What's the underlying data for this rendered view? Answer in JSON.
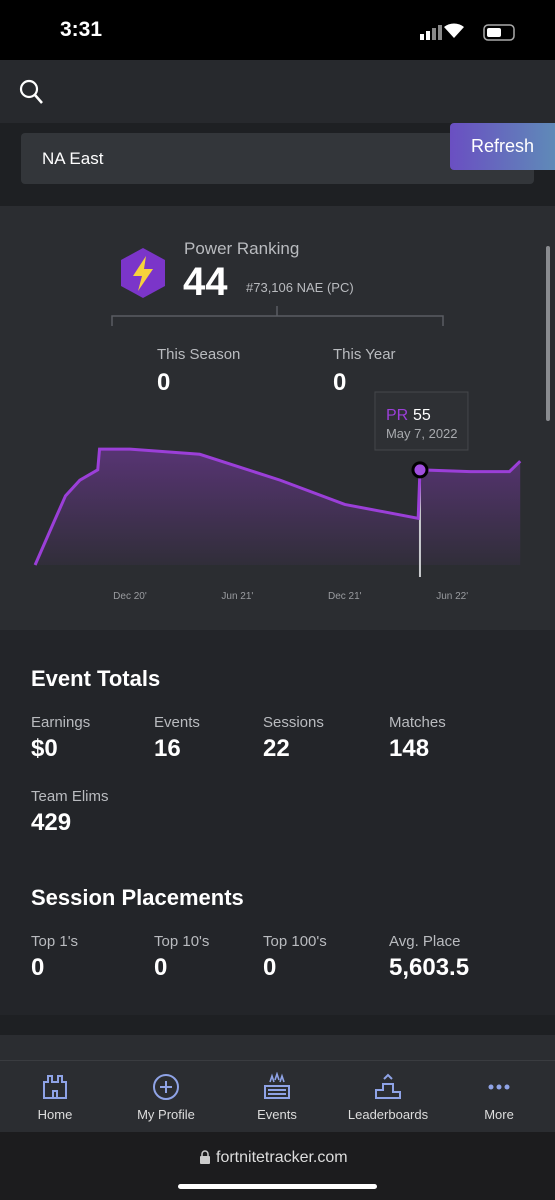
{
  "status": {
    "time": "3:31"
  },
  "region": {
    "value": "NA East",
    "refresh": "Refresh"
  },
  "power": {
    "label": "Power Ranking",
    "value": 44,
    "rank": "#73,106 NAE (PC)",
    "season": {
      "label": "This Season",
      "value": 0
    },
    "year": {
      "label": "This Year",
      "value": 0
    }
  },
  "chart_data": {
    "type": "line",
    "color": "#9b3fd8",
    "x": [
      5.7,
      6.8,
      7.4,
      8.2,
      9.2,
      9.3,
      11,
      14.9,
      19.4,
      23,
      27.1,
      27.2,
      30,
      32.2,
      32.8
    ],
    "values": [
      0,
      26,
      40,
      49,
      55,
      67,
      67,
      64,
      49,
      35,
      27,
      55,
      54,
      54,
      60
    ],
    "xlim": [
      5.5,
      33
    ],
    "ylim": [
      0,
      100
    ],
    "xticks": [
      {
        "value": 11,
        "label": "Dec 20'"
      },
      {
        "value": 17,
        "label": "Jun 21'"
      },
      {
        "value": 23,
        "label": "Dec 21'"
      },
      {
        "value": 29,
        "label": "Jun 22'"
      }
    ],
    "tooltip": {
      "label": "PR",
      "value": 55,
      "date": "May 7, 2022",
      "index": 11
    }
  },
  "event_totals": {
    "title": "Event Totals",
    "stats": [
      {
        "label": "Earnings",
        "value": "$0"
      },
      {
        "label": "Events",
        "value": 16
      },
      {
        "label": "Sessions",
        "value": 22
      },
      {
        "label": "Matches",
        "value": 148
      },
      {
        "label": "Team Elims",
        "value": 429
      }
    ]
  },
  "session_placements": {
    "title": "Session Placements",
    "stats": [
      {
        "label": "Top 1's",
        "value": 0
      },
      {
        "label": "Top 10's",
        "value": 0
      },
      {
        "label": "Top 100's",
        "value": 0
      },
      {
        "label": "Avg. Place",
        "value": "5,603.5"
      }
    ]
  },
  "nav": [
    "Home",
    "My Profile",
    "Events",
    "Leaderboards",
    "More"
  ],
  "browser": {
    "url": "fortnitetracker.com"
  }
}
